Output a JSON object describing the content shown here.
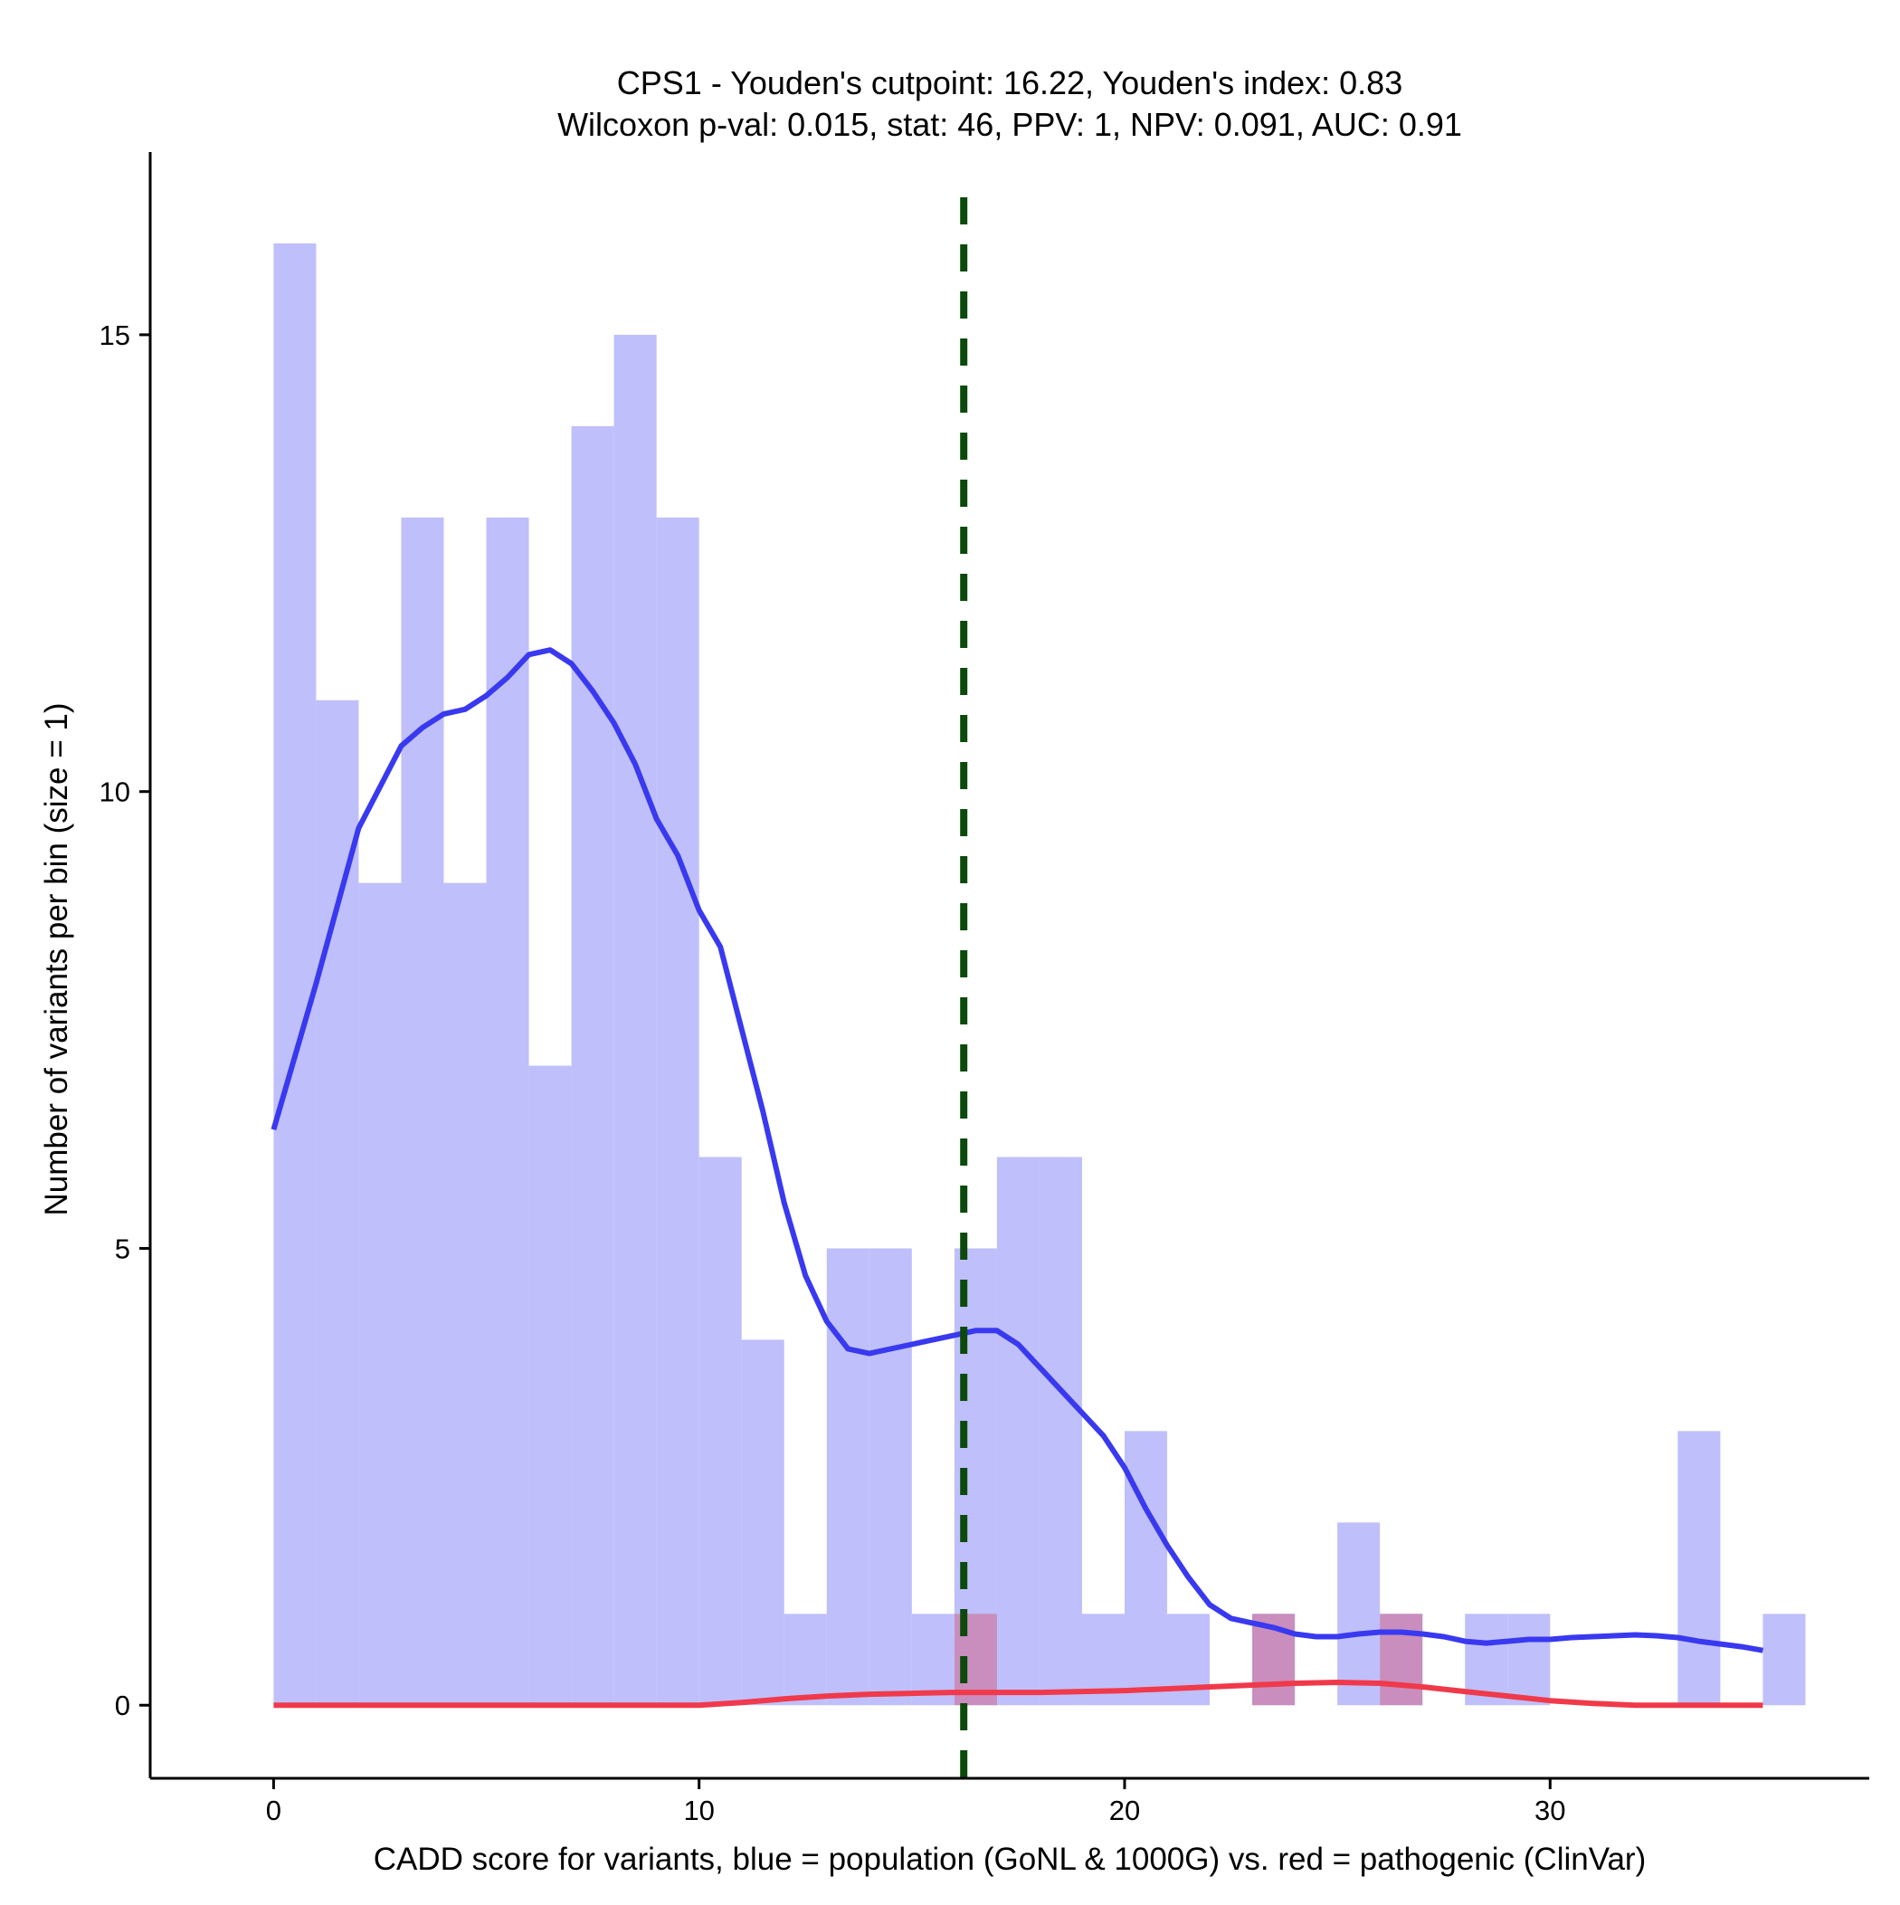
{
  "chart_data": {
    "type": "bar",
    "title": "CPS1 - Youden's cutpoint: 16.22, Youden's index: 0.83",
    "subtitle": "Wilcoxon p-val: 0.015, stat: 46, PPV: 1, NPV: 0.091, AUC: 0.91",
    "xlabel": "CADD score for variants, blue = population (GoNL & 1000G) vs. red = pathogenic (ClinVar)",
    "ylabel": "Number of variants per bin (size = 1)",
    "xlim": [
      -2.9,
      37.5
    ],
    "ylim": [
      -0.8,
      17.0
    ],
    "x_ticks": [
      0,
      10,
      20,
      30
    ],
    "y_ticks": [
      0,
      5,
      10,
      15
    ],
    "bin_width": 1,
    "cutpoint": 16.22,
    "colors": {
      "population_bar": "#bfbffb",
      "pathogenic_bar": "#c98ebd",
      "population_line": "#3939f0",
      "pathogenic_line": "#f0394a",
      "cutpoint_line": "#0b4a0b"
    },
    "series": [
      {
        "name": "population",
        "bins_start": [
          0,
          1,
          2,
          3,
          4,
          5,
          6,
          7,
          8,
          9,
          10,
          11,
          12,
          13,
          14,
          15,
          16,
          17,
          18,
          19,
          20,
          21,
          22,
          23,
          24,
          25,
          26,
          27,
          28,
          29,
          30,
          31,
          32,
          33,
          34,
          35
        ],
        "counts": [
          16,
          11,
          9,
          13,
          9,
          13,
          7,
          14,
          15,
          13,
          6,
          4,
          1,
          5,
          5,
          1,
          5,
          6,
          6,
          1,
          3,
          1,
          0,
          1,
          0,
          2,
          1,
          0,
          1,
          1,
          0,
          0,
          0,
          3,
          0,
          1
        ]
      },
      {
        "name": "pathogenic",
        "bins_start": [
          16,
          23,
          26
        ],
        "counts": [
          1,
          1,
          1
        ]
      }
    ],
    "density_curves": [
      {
        "name": "population",
        "x": [
          0,
          1,
          2,
          3,
          3.5,
          4,
          4.5,
          5,
          5.5,
          6,
          6.5,
          7,
          7.5,
          8,
          8.5,
          9,
          9.5,
          10,
          10.5,
          11,
          11.5,
          12,
          12.5,
          13,
          13.5,
          14,
          14.5,
          15,
          15.5,
          16,
          16.5,
          17,
          17.5,
          18,
          18.5,
          19,
          19.5,
          20,
          20.5,
          21,
          21.5,
          22,
          22.5,
          23,
          23.5,
          24,
          24.5,
          25,
          25.5,
          26,
          26.5,
          27,
          27.5,
          28,
          28.5,
          29,
          29.5,
          30,
          30.5,
          31,
          31.5,
          32,
          32.5,
          33,
          33.5,
          34,
          34.5,
          35
        ],
        "y": [
          6.3,
          7.9,
          9.6,
          10.5,
          10.7,
          10.85,
          10.9,
          11.05,
          11.25,
          11.5,
          11.55,
          11.4,
          11.1,
          10.75,
          10.3,
          9.7,
          9.3,
          8.7,
          8.3,
          7.4,
          6.5,
          5.5,
          4.7,
          4.2,
          3.9,
          3.85,
          3.9,
          3.95,
          4.0,
          4.05,
          4.1,
          4.1,
          3.95,
          3.7,
          3.45,
          3.2,
          2.95,
          2.6,
          2.15,
          1.75,
          1.4,
          1.1,
          0.95,
          0.9,
          0.85,
          0.78,
          0.75,
          0.75,
          0.78,
          0.8,
          0.8,
          0.78,
          0.75,
          0.7,
          0.68,
          0.7,
          0.72,
          0.72,
          0.74,
          0.75,
          0.76,
          0.77,
          0.76,
          0.74,
          0.7,
          0.67,
          0.64,
          0.6
        ]
      },
      {
        "name": "pathogenic",
        "x": [
          0,
          5,
          10,
          11,
          12,
          13,
          14,
          15,
          16,
          17,
          18,
          19,
          20,
          21,
          22,
          23,
          24,
          25,
          26,
          27,
          28,
          29,
          30,
          31,
          32,
          33,
          34,
          35
        ],
        "y": [
          0,
          0,
          0,
          0.03,
          0.07,
          0.1,
          0.12,
          0.13,
          0.14,
          0.14,
          0.14,
          0.15,
          0.16,
          0.18,
          0.2,
          0.22,
          0.24,
          0.25,
          0.24,
          0.2,
          0.15,
          0.1,
          0.05,
          0.02,
          0.0,
          0.0,
          0.0,
          0.0
        ]
      }
    ]
  }
}
